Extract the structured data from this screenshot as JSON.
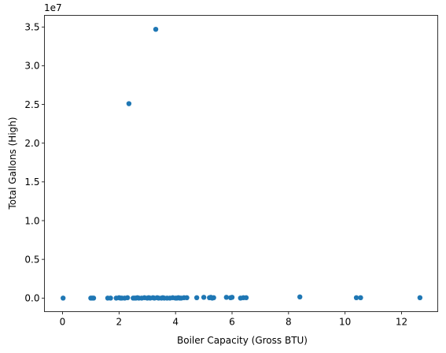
{
  "chart_data": {
    "type": "scatter",
    "title": "",
    "xlabel": "Boiler Capacity (Gross  BTU)",
    "ylabel": "Total Gallons (High)",
    "y_offset_label": "1e7",
    "xlim": [
      -0.64,
      13.28
    ],
    "ylim": [
      -1.75,
      36.5
    ],
    "y_scale": 10000000,
    "grid": false,
    "legend": "none",
    "marker_color": "#1f77b4",
    "xticks": [
      0,
      2,
      4,
      6,
      8,
      10,
      12
    ],
    "xtick_labels": [
      "0",
      "2",
      "4",
      "6",
      "8",
      "10",
      "12"
    ],
    "yticks": [
      0,
      5,
      10,
      15,
      20,
      25,
      30,
      35
    ],
    "ytick_labels": [
      "0.0",
      "0.5",
      "1.0",
      "1.5",
      "2.0",
      "2.5",
      "3.0",
      "3.5"
    ],
    "points": [
      {
        "x": 0.02,
        "y": 0.0
      },
      {
        "x": 1.0,
        "y": 0.0
      },
      {
        "x": 1.05,
        "y": 0.0
      },
      {
        "x": 1.1,
        "y": 0.0
      },
      {
        "x": 1.6,
        "y": 0.0
      },
      {
        "x": 1.7,
        "y": 0.0
      },
      {
        "x": 1.9,
        "y": 0.0
      },
      {
        "x": 2.0,
        "y": 0.05
      },
      {
        "x": 2.05,
        "y": 0.0
      },
      {
        "x": 2.1,
        "y": 0.0
      },
      {
        "x": 2.2,
        "y": 0.0
      },
      {
        "x": 2.3,
        "y": 0.05
      },
      {
        "x": 2.35,
        "y": 25.1
      },
      {
        "x": 2.5,
        "y": 0.0
      },
      {
        "x": 2.55,
        "y": 0.0
      },
      {
        "x": 2.6,
        "y": 0.0
      },
      {
        "x": 2.65,
        "y": 0.05
      },
      {
        "x": 2.7,
        "y": 0.0
      },
      {
        "x": 2.8,
        "y": 0.0
      },
      {
        "x": 2.9,
        "y": 0.05
      },
      {
        "x": 3.0,
        "y": 0.0
      },
      {
        "x": 3.05,
        "y": 0.05
      },
      {
        "x": 3.1,
        "y": 0.0
      },
      {
        "x": 3.2,
        "y": 0.05
      },
      {
        "x": 3.25,
        "y": 0.0
      },
      {
        "x": 3.3,
        "y": 34.7
      },
      {
        "x": 3.35,
        "y": 0.05
      },
      {
        "x": 3.4,
        "y": 0.0
      },
      {
        "x": 3.5,
        "y": 0.0
      },
      {
        "x": 3.55,
        "y": 0.05
      },
      {
        "x": 3.6,
        "y": 0.0
      },
      {
        "x": 3.7,
        "y": 0.0
      },
      {
        "x": 3.8,
        "y": 0.0
      },
      {
        "x": 3.9,
        "y": 0.05
      },
      {
        "x": 4.0,
        "y": 0.0
      },
      {
        "x": 4.05,
        "y": 0.0
      },
      {
        "x": 4.1,
        "y": 0.05
      },
      {
        "x": 4.15,
        "y": 0.0
      },
      {
        "x": 4.2,
        "y": 0.0
      },
      {
        "x": 4.3,
        "y": 0.05
      },
      {
        "x": 4.4,
        "y": 0.05
      },
      {
        "x": 4.75,
        "y": 0.05
      },
      {
        "x": 5.0,
        "y": 0.1
      },
      {
        "x": 5.2,
        "y": 0.05
      },
      {
        "x": 5.25,
        "y": 0.1
      },
      {
        "x": 5.3,
        "y": 0.0
      },
      {
        "x": 5.35,
        "y": 0.05
      },
      {
        "x": 5.8,
        "y": 0.1
      },
      {
        "x": 5.95,
        "y": 0.05
      },
      {
        "x": 6.0,
        "y": 0.1
      },
      {
        "x": 6.3,
        "y": 0.0
      },
      {
        "x": 6.4,
        "y": 0.05
      },
      {
        "x": 6.5,
        "y": 0.05
      },
      {
        "x": 8.4,
        "y": 0.15
      },
      {
        "x": 10.4,
        "y": 0.05
      },
      {
        "x": 10.55,
        "y": 0.05
      },
      {
        "x": 12.65,
        "y": 0.05
      }
    ]
  }
}
